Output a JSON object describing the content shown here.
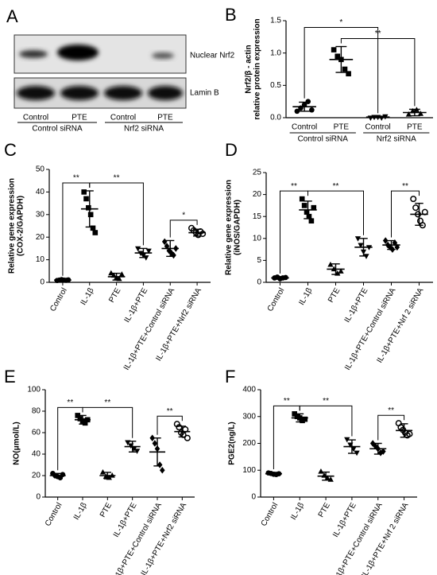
{
  "blot": {
    "label": "A",
    "bands": [
      "Nuclear Nrf2",
      "Lamin B"
    ],
    "lanes": [
      "Control",
      "PTE",
      "Control",
      "PTE"
    ],
    "groups": [
      "Control siRNA",
      "Nrf2 siRNA"
    ]
  },
  "chart_data": [
    {
      "type": "dot",
      "label": "B",
      "ylabel": [
        "Nrf2/β - actin",
        "relative protein expression"
      ],
      "categories": [
        "Control",
        "PTE",
        "Control",
        "PTE"
      ],
      "groups": [
        {
          "label": "Control siRNA",
          "from": 0,
          "to": 1
        },
        {
          "label": "Nrf2 siRNA",
          "from": 2,
          "to": 3
        }
      ],
      "means": [
        0.17,
        0.9,
        0.01,
        0.08
      ],
      "errors": [
        0.07,
        0.2,
        0.01,
        0.05
      ],
      "points": [
        [
          0.1,
          0.15,
          0.2,
          0.25,
          0.12
        ],
        [
          1.05,
          0.95,
          0.9,
          0.75,
          0.68
        ],
        [
          0.0,
          0.01,
          0.01,
          0.0,
          0.02
        ],
        [
          0.05,
          0.1,
          0.12,
          0.06
        ]
      ],
      "markers": [
        "circle",
        "square",
        "triangle-down",
        "triangle-up"
      ],
      "ylim": [
        0,
        1.5
      ],
      "yticks": [
        {
          "value": 0,
          "label": "0.0"
        },
        0.5,
        {
          "value": 1,
          "label": "1.0"
        },
        1.5
      ],
      "brackets": [
        {
          "label": "**",
          "from": 1,
          "to": 3
        },
        {
          "label": "*",
          "from": 0,
          "to": 2
        }
      ],
      "rotate_labels": false,
      "color": "#000000"
    },
    {
      "type": "dot",
      "label": "C",
      "ylabel": [
        "Relative gene expression",
        "(COX-2/GAPDH)"
      ],
      "categories": [
        "Control",
        "IL-1β",
        "PTE",
        "IL-1β+PTE",
        "IL-1β+PTE+Control siRNA",
        "IL-1β+PTE+Nrf2 siRNA"
      ],
      "means": [
        1,
        32.5,
        2.5,
        13,
        15,
        22
      ],
      "errors": [
        0.5,
        8,
        1.5,
        2,
        3.5,
        1.5
      ],
      "points": [
        [
          0.8,
          1,
          1.2,
          1,
          0.9,
          1.1
        ],
        [
          40,
          37,
          33,
          30,
          24,
          22
        ],
        [
          4,
          3,
          2,
          1.5,
          3.5
        ],
        [
          15,
          13,
          12,
          11,
          14
        ],
        [
          18,
          16,
          14,
          13,
          12,
          15
        ],
        [
          24,
          23,
          22,
          21,
          22.5,
          21.5
        ]
      ],
      "markers": [
        "circle",
        "square",
        "triangle-up",
        "triangle-down",
        "diamond",
        "circle-open"
      ],
      "ylim": [
        0,
        50
      ],
      "yticks": [
        0,
        10,
        20,
        30,
        40,
        50
      ],
      "brackets": [
        {
          "label": "**",
          "from": 0,
          "to": 1
        },
        {
          "label": "**",
          "from": 1,
          "to": 3
        },
        {
          "label": "*",
          "from": 4,
          "to": 5
        }
      ],
      "rotate_labels": true,
      "color": "#000000"
    },
    {
      "type": "dot",
      "label": "D",
      "ylabel": [
        "Relative gene expression",
        "(iNOS/GAPDH)"
      ],
      "categories": [
        "Control",
        "IL-1β",
        "PTE",
        "IL-1β+PTE",
        "IL-1β+PTE+Control siRNA",
        "IL-1β+PTE+Nrf 2 siRNA"
      ],
      "means": [
        1,
        16.5,
        3,
        8,
        8.5,
        15.5
      ],
      "errors": [
        0.3,
        2,
        1.2,
        2,
        1,
        2.5
      ],
      "points": [
        [
          1,
          1.2,
          0.8,
          1,
          1.1
        ],
        [
          19,
          17.5,
          16,
          15,
          14,
          17
        ],
        [
          4,
          3,
          2,
          2.5
        ],
        [
          10,
          8.5,
          7,
          6,
          8
        ],
        [
          9.5,
          8.5,
          8,
          7.5,
          9,
          8
        ],
        [
          19,
          17,
          15.5,
          14,
          13,
          16
        ]
      ],
      "markers": [
        "circle",
        "square",
        "triangle-up",
        "triangle-down",
        "diamond",
        "circle-open"
      ],
      "ylim": [
        0,
        25
      ],
      "yticks": [
        0,
        5,
        10,
        15,
        20,
        25
      ],
      "brackets": [
        {
          "label": "**",
          "from": 0,
          "to": 1
        },
        {
          "label": "**",
          "from": 1,
          "to": 3
        },
        {
          "label": "**",
          "from": 4,
          "to": 5
        }
      ],
      "rotate_labels": true,
      "color": "#000000"
    },
    {
      "type": "dot",
      "label": "E",
      "ylabel": [
        "NO(μmol/L)"
      ],
      "categories": [
        "Control",
        "IL-1β",
        "PTE",
        "IL-1β+PTE",
        "IL-1β+PTE+Control siRNA",
        "IL-1β+PTE+Nrf2 siRNA"
      ],
      "means": [
        20,
        72,
        20,
        47,
        42,
        61
      ],
      "errors": [
        2,
        4,
        3,
        5,
        13,
        5
      ],
      "points": [
        [
          22,
          20,
          19,
          18,
          21
        ],
        [
          76,
          73,
          71,
          69,
          72
        ],
        [
          23,
          19,
          18,
          20
        ],
        [
          51,
          48,
          45,
          43
        ],
        [
          55,
          50,
          45,
          30,
          25
        ],
        [
          68,
          65,
          60,
          58,
          63,
          55
        ]
      ],
      "markers": [
        "circle",
        "square",
        "triangle-up",
        "triangle-down",
        "diamond",
        "circle-open"
      ],
      "ylim": [
        0,
        100
      ],
      "yticks": [
        0,
        20,
        40,
        60,
        80,
        100
      ],
      "brackets": [
        {
          "label": "**",
          "from": 0,
          "to": 1
        },
        {
          "label": "**",
          "from": 1,
          "to": 3
        },
        {
          "label": "**",
          "from": 4,
          "to": 5
        }
      ],
      "rotate_labels": true,
      "color": "#000000"
    },
    {
      "type": "dot",
      "label": "F",
      "ylabel": [
        "PGE2(ng/L)"
      ],
      "categories": [
        "Control",
        "IL-1β",
        "PTE",
        "IL-1β+PTE",
        "IL-1β+PTE+Control siRNA",
        "IL-1β+PTE+Nrf 2 siRNA"
      ],
      "means": [
        87,
        295,
        78,
        188,
        180,
        248
      ],
      "errors": [
        5,
        15,
        15,
        25,
        20,
        25
      ],
      "points": [
        [
          90,
          88,
          85,
          84,
          87
        ],
        [
          310,
          300,
          295,
          285,
          290
        ],
        [
          95,
          80,
          70,
          65
        ],
        [
          215,
          195,
          180,
          165
        ],
        [
          200,
          190,
          180,
          165,
          170
        ],
        [
          275,
          260,
          250,
          240,
          230,
          235
        ]
      ],
      "markers": [
        "circle",
        "square",
        "triangle-up",
        "triangle-down",
        "diamond",
        "circle-open"
      ],
      "ylim": [
        0,
        400
      ],
      "yticks": [
        0,
        100,
        200,
        300,
        400
      ],
      "brackets": [
        {
          "label": "**",
          "from": 0,
          "to": 1
        },
        {
          "label": "**",
          "from": 1,
          "to": 3
        },
        {
          "label": "**",
          "from": 4,
          "to": 5
        }
      ],
      "rotate_labels": true,
      "color": "#000000"
    }
  ]
}
